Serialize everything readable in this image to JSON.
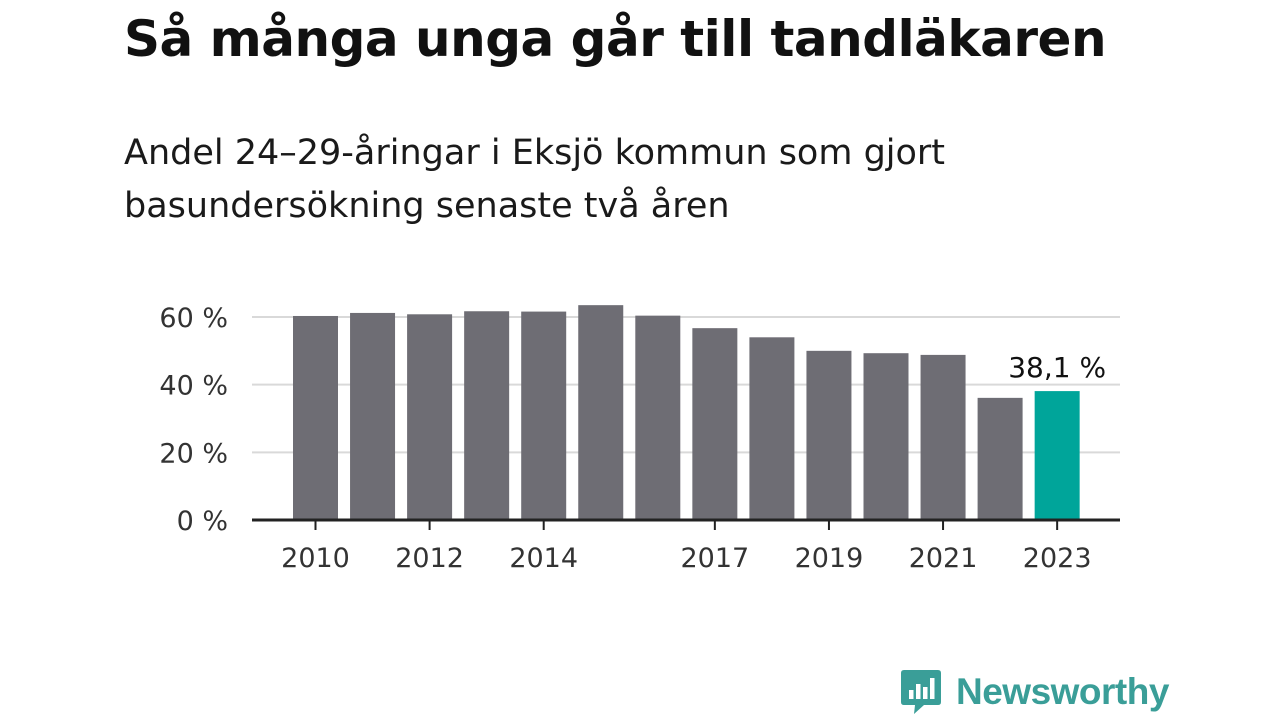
{
  "header": {
    "title": "Så många unga går till tandläkaren",
    "subtitle": "Andel 24–29-åringar i Eksjö kommun som gjort basundersökning senaste två åren"
  },
  "chart_data": {
    "type": "bar",
    "categories": [
      "2010",
      "2011",
      "2012",
      "2013",
      "2014",
      "2015",
      "2016",
      "2017",
      "2018",
      "2019",
      "2020",
      "2021",
      "2022",
      "2023"
    ],
    "x_tick_labels": [
      "2010",
      "2012",
      "2014",
      "2017",
      "2019",
      "2021",
      "2023"
    ],
    "values": [
      60.3,
      61.2,
      60.8,
      61.7,
      61.6,
      63.5,
      60.4,
      56.7,
      54.0,
      50.0,
      49.3,
      48.8,
      36.1,
      38.1
    ],
    "ylim": [
      0,
      60
    ],
    "y_ticks": [
      0,
      20,
      40,
      60
    ],
    "y_tick_labels": [
      "0 %",
      "20 %",
      "40 %",
      "60 %"
    ],
    "annotation": {
      "category": "2023",
      "text": "38,1 %"
    },
    "grid": true,
    "colors": {
      "default": "#6e6d74",
      "highlight": "#00a59a",
      "grid": "#d9d9d9",
      "axis": "#222222"
    }
  },
  "branding": {
    "name": "Newsworthy",
    "color": "#3a9e98",
    "icon": "bar-chart-speech-bubble-icon"
  }
}
